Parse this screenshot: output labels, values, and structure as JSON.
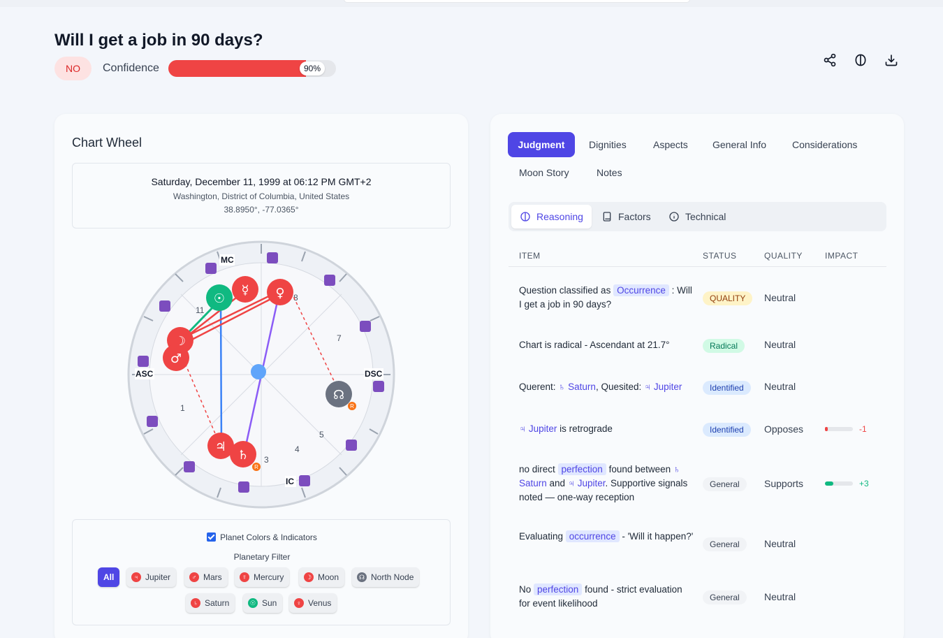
{
  "header": {
    "title": "Will I get a job in 90 days?",
    "verdict": "NO",
    "confidence_label": "Confidence",
    "confidence_value": "90%",
    "confidence_fraction": 0.9
  },
  "chart_wheel": {
    "title": "Chart Wheel",
    "date": "Saturday, December 11, 1999 at 06:12 PM GMT+2",
    "location": "Washington, District of Columbia, United States",
    "coords": "38.8950°, -77.0365°",
    "angles": {
      "asc": "ASC",
      "dsc": "DSC",
      "mc": "MC",
      "ic": "IC"
    },
    "house_numbers": [
      "1",
      "3",
      "4",
      "5",
      "7",
      "8",
      "11"
    ],
    "retrograde_mark": "R"
  },
  "filter": {
    "checkbox_label": "Planet Colors & Indicators",
    "title": "Planetary Filter",
    "chips": [
      "All",
      "Jupiter",
      "Mars",
      "Mercury",
      "Moon",
      "North Node",
      "Saturn",
      "Sun",
      "Venus"
    ]
  },
  "tabs": [
    "Judgment",
    "Dignities",
    "Aspects",
    "General Info",
    "Considerations",
    "Moon Story",
    "Notes"
  ],
  "subtabs": [
    "Reasoning",
    "Factors",
    "Technical"
  ],
  "table": {
    "headers": [
      "ITEM",
      "STATUS",
      "QUALITY",
      "IMPACT"
    ],
    "rows": [
      {
        "a": "Question classified as ",
        "hl": "Occurrence",
        "b": " : Will I get a job in 90 days?",
        "status": "QUALITY",
        "quality": "Neutral"
      },
      {
        "text": "Chart is radical - Ascendant at 21.7°",
        "status": "Radical",
        "quality": "Neutral"
      },
      {
        "a": "Querent: ",
        "l1": "♄ Saturn",
        "b": ", Quesited: ",
        "l2": "♃ Jupiter",
        "status": "Identified",
        "quality": "Neutral"
      },
      {
        "l1": "♃ Jupiter",
        "b": " is retrograde",
        "status": "Identified",
        "quality": "Opposes",
        "impact": "-1",
        "impact_fraction": -0.1
      },
      {
        "a": "no direct ",
        "hl": "perfection",
        "b": " found between ",
        "l1": "♄ Saturn",
        "c": " and ",
        "l2": "♃ Jupiter",
        "d": ". Supportive signals noted — one-way reception",
        "status": "General",
        "quality": "Supports",
        "impact": "+3",
        "impact_fraction": 0.3
      },
      {
        "a": "Evaluating ",
        "hl": "occurrence",
        "b": " - 'Will it happen?'",
        "status": "General",
        "quality": "Neutral"
      },
      {
        "a": "No ",
        "hl": "perfection",
        "b": " found - strict evaluation for event likelihood",
        "status": "General",
        "quality": "Neutral"
      }
    ]
  },
  "colors": {
    "accent": "#4f46e5",
    "negative": "#ef4444",
    "positive": "#10b981"
  },
  "icons": [
    "share-icon",
    "brain-icon",
    "download-icon"
  ]
}
